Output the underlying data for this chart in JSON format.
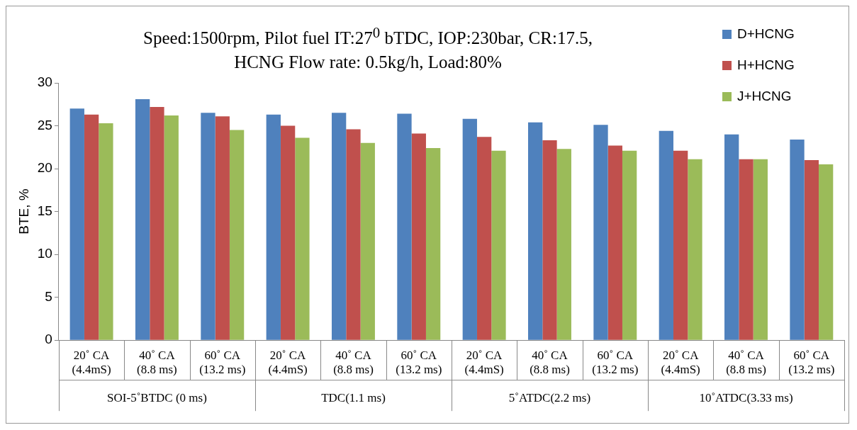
{
  "chart_data": {
    "type": "bar",
    "title": "Speed:1500rpm, Pilot fuel IT:27$^{0}$ bTDC, IOP:230bar, CR:17.5,\nHCNG Flow rate: 0.5kg/h, Load:80%",
    "ylabel": "BTE, %",
    "categories": [
      "20˚ CA\n(4.4mS)",
      "40˚ CA\n(8.8 ms)",
      "60˚ CA\n(13.2 ms)",
      "20˚ CA\n(4.4mS)",
      "40˚ CA\n(8.8 ms)",
      "60˚ CA\n(13.2 ms)",
      "20˚ CA\n(4.4mS)",
      "40˚ CA\n(8.8 ms)",
      "60˚ CA\n(13.2 ms)",
      "20˚ CA\n(4.4mS)",
      "40˚ CA\n(8.8 ms)",
      "60˚ CA\n(13.2 ms)"
    ],
    "annotations": [
      "SOI-5˚BTDC (0 ms)",
      "TDC(1.1 ms)",
      "5˚ATDC(2.2 ms)",
      "10˚ATDC(3.33 ms)"
    ],
    "series": [
      {
        "name": "D+HCNG",
        "color": "#4f81bd",
        "values": [
          27.0,
          28.1,
          26.5,
          26.3,
          26.5,
          26.4,
          25.8,
          25.4,
          25.1,
          24.4,
          24.0,
          23.4
        ]
      },
      {
        "name": "H+HCNG",
        "color": "#c0504d",
        "values": [
          26.3,
          27.2,
          26.1,
          25.0,
          24.6,
          24.1,
          23.7,
          23.3,
          22.7,
          22.1,
          21.1,
          21.0
        ]
      },
      {
        "name": "J+HCNG",
        "color": "#9bbb59",
        "values": [
          25.3,
          26.2,
          24.5,
          23.6,
          23.0,
          22.4,
          22.1,
          22.3,
          22.1,
          21.1,
          21.1,
          20.5
        ]
      }
    ],
    "ylim": [
      0,
      30
    ],
    "yticks": [
      0,
      5,
      10,
      15,
      20,
      25,
      30
    ],
    "grid": false,
    "legend": "top right"
  }
}
